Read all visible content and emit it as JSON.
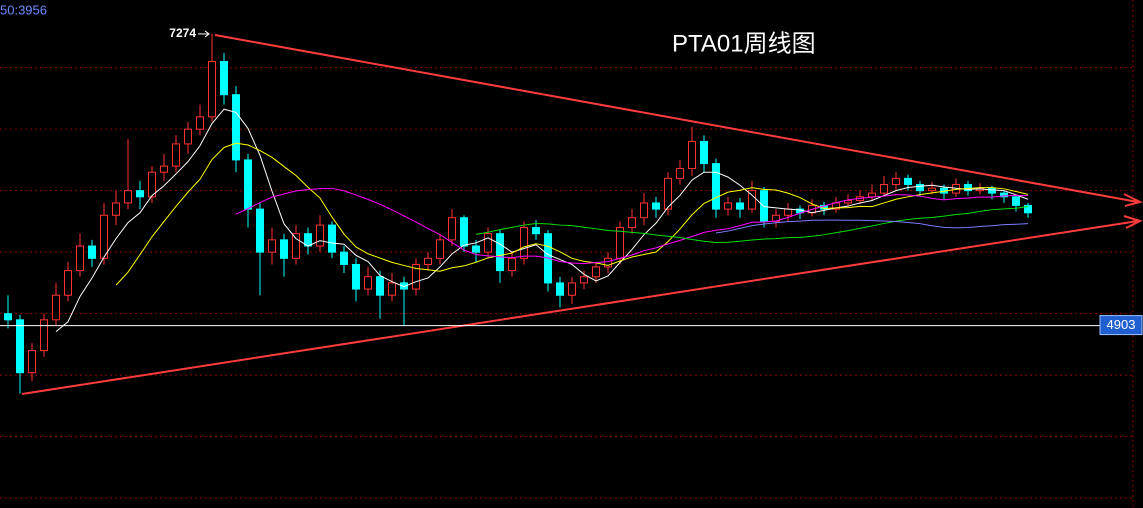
{
  "chart_data": {
    "type": "candlestick",
    "title": "PTA01周线图",
    "corner_text": "50:3956",
    "high_label": 7274,
    "price_line": 4903,
    "up_color": "#ff3232",
    "down_color": "#00ffff",
    "grid_color": "#8b0000",
    "ylim": [
      3420,
      7550
    ],
    "yticks": [
      3500,
      4000,
      4500,
      5000,
      5500,
      6000,
      6500,
      7000
    ],
    "grid": true,
    "moving_averages": [
      {
        "period": 5,
        "color": "#ffffff"
      },
      {
        "period": 10,
        "color": "#ffff00"
      },
      {
        "period": 20,
        "color": "#ff00ff"
      },
      {
        "period": 40,
        "color": "#00e000"
      },
      {
        "period": 60,
        "color": "#7b7bff"
      }
    ],
    "ohlc": [
      [
        5000,
        5150,
        4880,
        4950
      ],
      [
        4950,
        4990,
        4350,
        4520
      ],
      [
        4520,
        4760,
        4450,
        4700
      ],
      [
        4700,
        5000,
        4650,
        4950
      ],
      [
        4950,
        5250,
        4900,
        5150
      ],
      [
        5150,
        5420,
        5100,
        5350
      ],
      [
        5350,
        5650,
        5300,
        5550
      ],
      [
        5550,
        5600,
        5380,
        5450
      ],
      [
        5450,
        5900,
        5400,
        5800
      ],
      [
        5800,
        6000,
        5720,
        5900
      ],
      [
        5900,
        6420,
        5850,
        6000
      ],
      [
        6000,
        6080,
        5850,
        5950
      ],
      [
        5950,
        6200,
        5900,
        6150
      ],
      [
        6150,
        6300,
        6080,
        6200
      ],
      [
        6200,
        6450,
        6150,
        6380
      ],
      [
        6380,
        6560,
        6300,
        6500
      ],
      [
        6500,
        6700,
        6450,
        6600
      ],
      [
        6600,
        7274,
        6560,
        7050
      ],
      [
        7050,
        7120,
        6700,
        6780
      ],
      [
        6780,
        6850,
        6150,
        6250
      ],
      [
        6250,
        6300,
        5700,
        5850
      ],
      [
        5850,
        5900,
        5150,
        5500
      ],
      [
        5500,
        5700,
        5400,
        5600
      ],
      [
        5600,
        5650,
        5300,
        5450
      ],
      [
        5450,
        5720,
        5400,
        5650
      ],
      [
        5650,
        5700,
        5480,
        5550
      ],
      [
        5550,
        5800,
        5500,
        5720
      ],
      [
        5720,
        5750,
        5450,
        5500
      ],
      [
        5500,
        5550,
        5330,
        5400
      ],
      [
        5400,
        5450,
        5100,
        5200
      ],
      [
        5200,
        5380,
        5150,
        5300
      ],
      [
        5300,
        5350,
        4960,
        5150
      ],
      [
        5150,
        5330,
        5100,
        5250
      ],
      [
        5250,
        5300,
        4903,
        5200
      ],
      [
        5200,
        5450,
        5150,
        5400
      ],
      [
        5400,
        5500,
        5350,
        5450
      ],
      [
        5450,
        5650,
        5400,
        5600
      ],
      [
        5600,
        5850,
        5550,
        5780
      ],
      [
        5780,
        5800,
        5500,
        5550
      ],
      [
        5550,
        5600,
        5420,
        5500
      ],
      [
        5500,
        5700,
        5450,
        5650
      ],
      [
        5650,
        5680,
        5250,
        5350
      ],
      [
        5350,
        5500,
        5300,
        5450
      ],
      [
        5450,
        5750,
        5400,
        5700
      ],
      [
        5700,
        5760,
        5600,
        5650
      ],
      [
        5650,
        5680,
        5180,
        5250
      ],
      [
        5250,
        5300,
        5050,
        5150
      ],
      [
        5150,
        5300,
        5080,
        5250
      ],
      [
        5250,
        5350,
        5200,
        5300
      ],
      [
        5300,
        5420,
        5250,
        5380
      ],
      [
        5380,
        5500,
        5330,
        5450
      ],
      [
        5450,
        5750,
        5400,
        5700
      ],
      [
        5700,
        5850,
        5650,
        5780
      ],
      [
        5780,
        5980,
        5720,
        5900
      ],
      [
        5900,
        5950,
        5780,
        5850
      ],
      [
        5850,
        6150,
        5800,
        6100
      ],
      [
        6100,
        6250,
        6050,
        6180
      ],
      [
        6180,
        6520,
        6120,
        6400
      ],
      [
        6400,
        6450,
        6150,
        6220
      ],
      [
        6220,
        6260,
        5780,
        5850
      ],
      [
        5850,
        5950,
        5800,
        5900
      ],
      [
        5900,
        5940,
        5780,
        5850
      ],
      [
        5850,
        6080,
        5820,
        6000
      ],
      [
        6000,
        6030,
        5700,
        5750
      ],
      [
        5750,
        5850,
        5700,
        5800
      ],
      [
        5800,
        5900,
        5750,
        5850
      ],
      [
        5850,
        5880,
        5770,
        5820
      ],
      [
        5820,
        5930,
        5790,
        5880
      ],
      [
        5880,
        5910,
        5800,
        5850
      ],
      [
        5850,
        5950,
        5820,
        5900
      ],
      [
        5900,
        5970,
        5870,
        5920
      ],
      [
        5920,
        6000,
        5890,
        5950
      ],
      [
        5950,
        6050,
        5920,
        5980
      ],
      [
        5980,
        6120,
        5950,
        6050
      ],
      [
        6050,
        6150,
        6000,
        6100
      ],
      [
        6100,
        6130,
        6000,
        6050
      ],
      [
        6050,
        6080,
        5960,
        6000
      ],
      [
        6000,
        6070,
        5970,
        6020
      ],
      [
        6020,
        6050,
        5930,
        5980
      ],
      [
        5980,
        6100,
        5950,
        6050
      ],
      [
        6050,
        6080,
        5960,
        6000
      ],
      [
        6000,
        6060,
        5970,
        6020
      ],
      [
        6020,
        6040,
        5930,
        5980
      ],
      [
        5980,
        6000,
        5900,
        5950
      ],
      [
        5950,
        5970,
        5830,
        5880
      ],
      [
        5880,
        5900,
        5780,
        5820
      ]
    ]
  }
}
